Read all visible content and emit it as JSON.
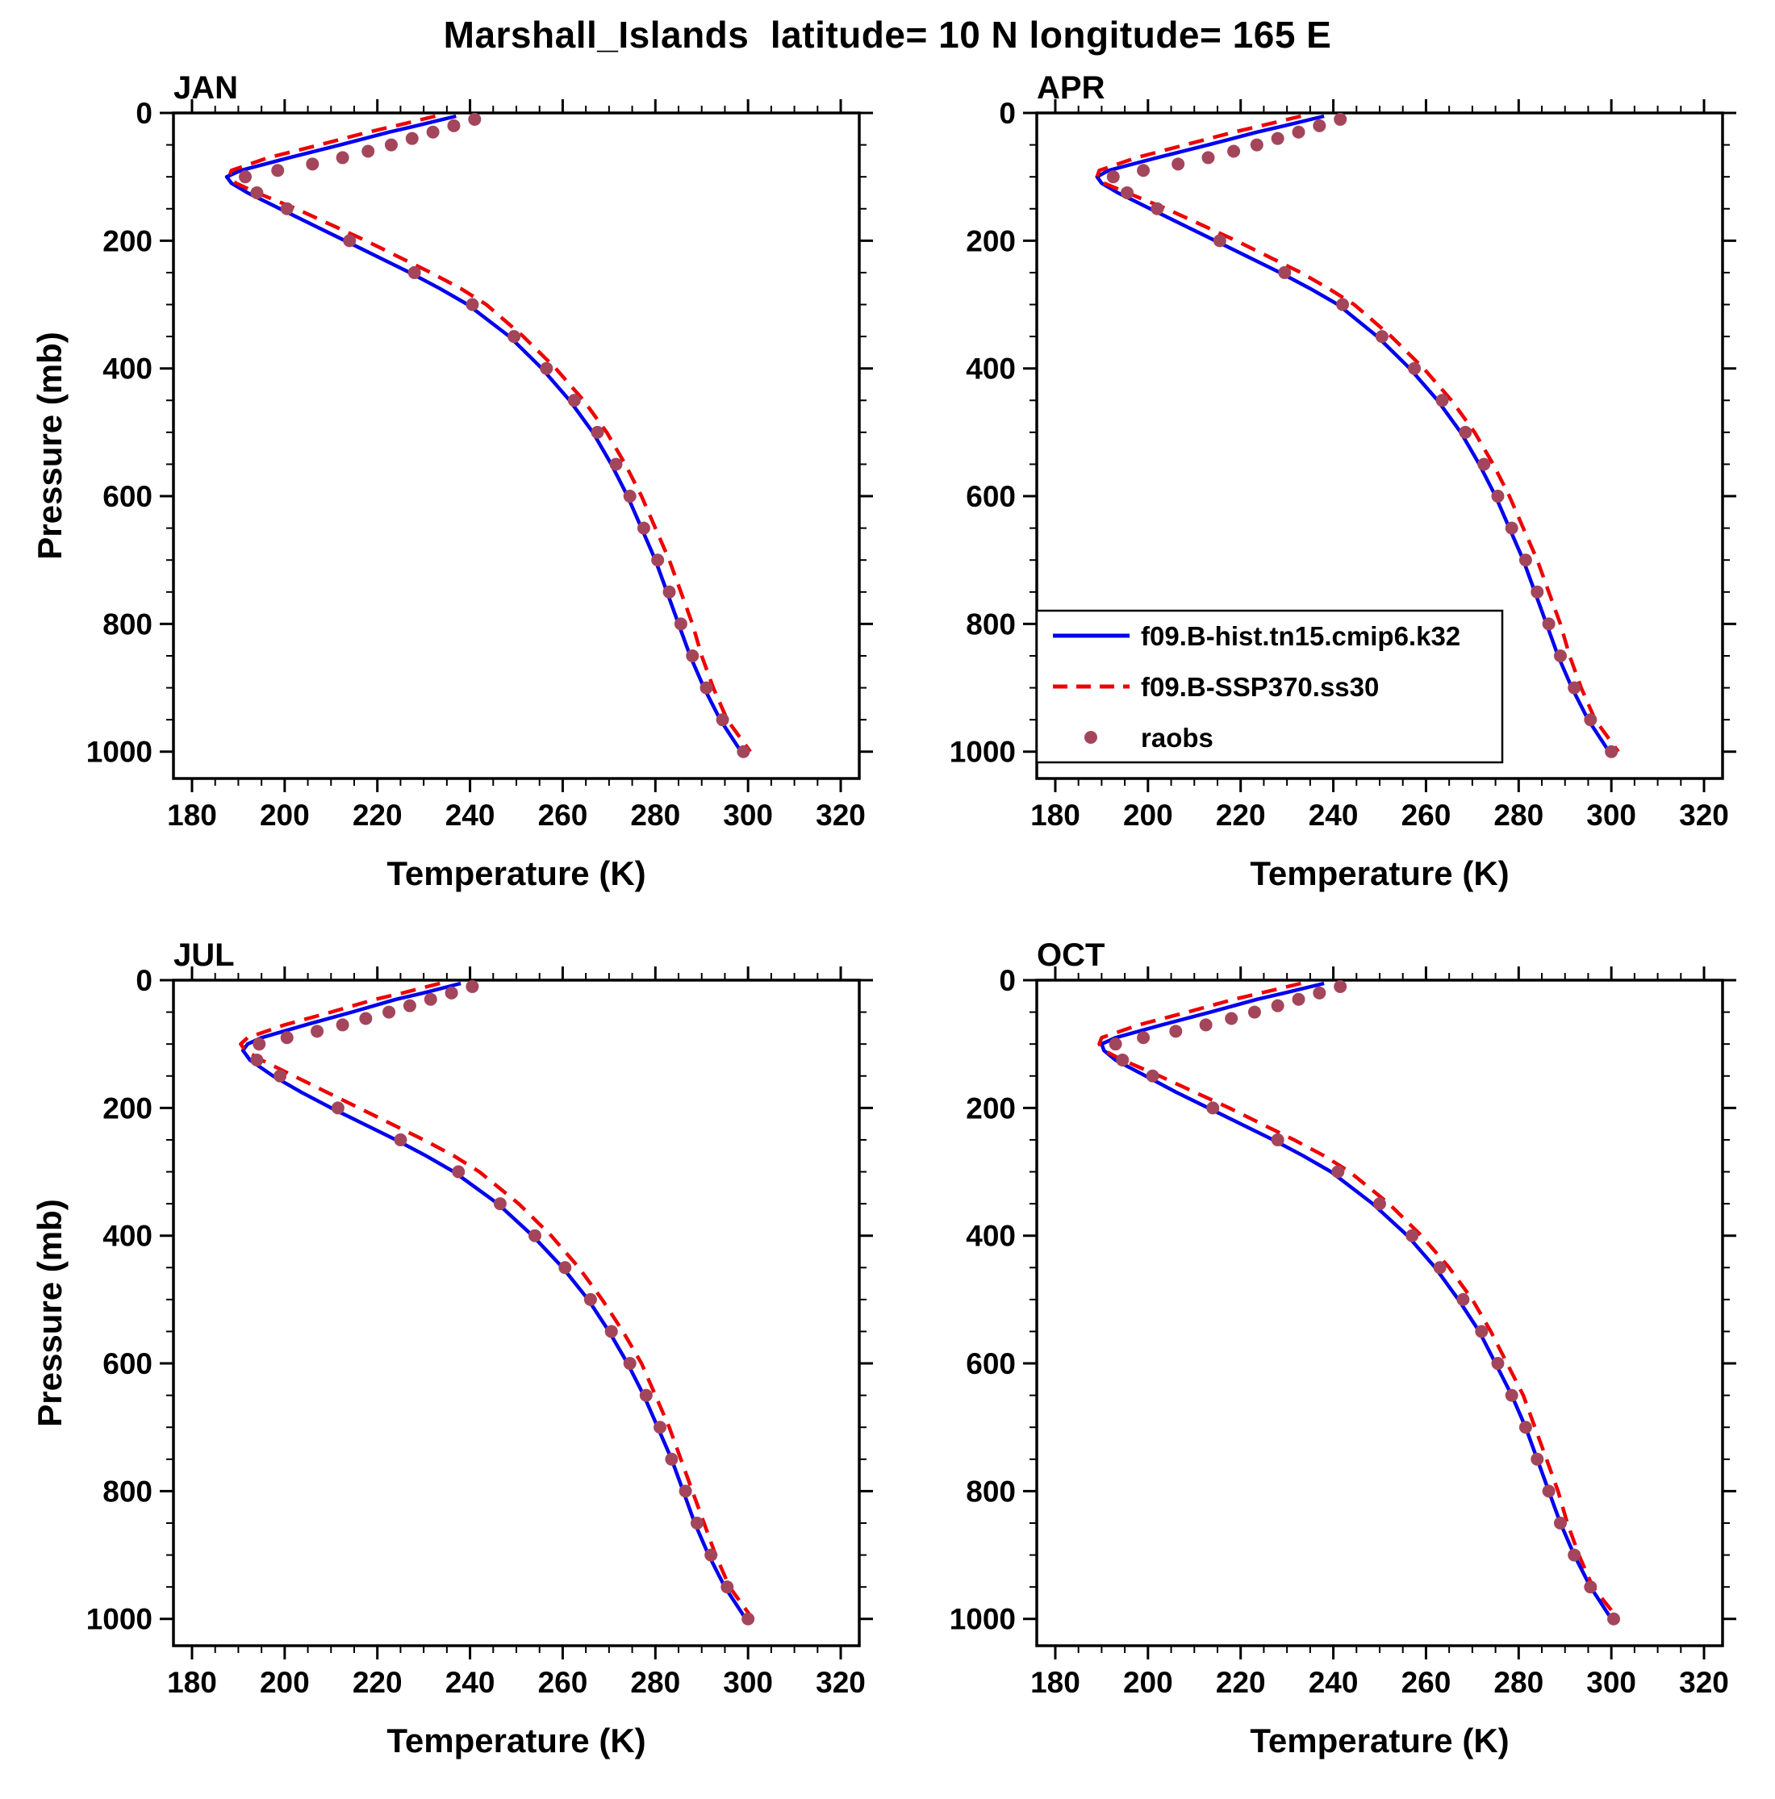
{
  "title": "Marshall_Islands  latitude= 10 N longitude= 165 E",
  "chart_data": {
    "type": "line",
    "title": "Marshall_Islands  latitude= 10 N longitude= 165 E",
    "xlabel": "Temperature (K)",
    "ylabel": "Pressure (mb)",
    "xlim": [
      180,
      320
    ],
    "ylim": [
      0,
      1000
    ],
    "y_axis_inverted": true,
    "xticks": [
      180,
      200,
      220,
      240,
      260,
      280,
      300,
      320
    ],
    "yticks": [
      0,
      200,
      400,
      600,
      800,
      1000
    ],
    "x_minor_step": 5,
    "y_minor_step": 50,
    "legend": {
      "panel": "APR",
      "position": "lower-left-inside",
      "entries": [
        "f09.B-hist.tn15.cmip6.k32",
        "f09.B-SSP370.ss30",
        "raobs"
      ]
    },
    "colors": {
      "hist": "#0000ee",
      "ssp370": "#ee0000",
      "raobs": "#a3465c"
    },
    "panels": [
      {
        "label": "JAN",
        "series": [
          {
            "name": "f09.B-hist.tn15.cmip6.k32",
            "color": "#0000ee",
            "style": "solid",
            "pressure": [
              5,
              20,
              30,
              50,
              70,
              90,
              100,
              110,
              125,
              150,
              175,
              200,
              225,
              250,
              275,
              300,
              350,
              400,
              450,
              500,
              550,
              600,
              650,
              700,
              750,
              800,
              850,
              900,
              950,
              1000
            ],
            "temperature": [
              237,
              228.5,
              222.5,
              212,
              201,
              190.5,
              187.5,
              188.5,
              192,
              199,
              206,
              213,
              220,
              227,
              233.5,
              239.5,
              248.5,
              255.5,
              261.5,
              266.5,
              270.5,
              274,
              277,
              280,
              282.5,
              285,
              287.5,
              290.5,
              294,
              298.5
            ]
          },
          {
            "name": "f09.B-SSP370.ss30",
            "color": "#ee0000",
            "style": "dashed",
            "pressure": [
              5,
              20,
              30,
              50,
              70,
              90,
              100,
              110,
              125,
              150,
              175,
              200,
              225,
              250,
              275,
              300,
              350,
              400,
              450,
              500,
              550,
              600,
              650,
              700,
              750,
              800,
              850,
              900,
              950,
              1000
            ],
            "temperature": [
              232.5,
              224,
              218,
              207.5,
              196.5,
              188.5,
              188,
              189.5,
              194,
              202.5,
              210,
              217.5,
              224.5,
              231.5,
              238,
              243.5,
              251.5,
              258.5,
              264.5,
              269.5,
              273.5,
              277,
              280,
              283,
              285.5,
              288,
              290,
              292.5,
              295.5,
              300.5
            ]
          },
          {
            "name": "raobs",
            "color": "#a3465c",
            "style": "dots",
            "pressure": [
              10,
              20,
              30,
              40,
              50,
              60,
              70,
              80,
              90,
              100,
              125,
              150,
              200,
              250,
              300,
              350,
              400,
              450,
              500,
              550,
              600,
              650,
              700,
              750,
              800,
              850,
              900,
              950,
              1000
            ],
            "temperature": [
              241,
              236.5,
              232,
              227.5,
              223,
              218,
              212.5,
              206,
              198.5,
              191.5,
              194,
              200.5,
              214,
              228,
              240.5,
              249.5,
              256.5,
              262.5,
              267.5,
              271.5,
              274.5,
              277.5,
              280.5,
              283,
              285.5,
              288,
              291,
              294.5,
              299
            ]
          }
        ]
      },
      {
        "label": "APR",
        "series": [
          {
            "name": "f09.B-hist.tn15.cmip6.k32",
            "color": "#0000ee",
            "style": "solid",
            "pressure": [
              5,
              20,
              30,
              50,
              70,
              90,
              100,
              110,
              125,
              150,
              175,
              200,
              225,
              250,
              275,
              300,
              350,
              400,
              450,
              500,
              550,
              600,
              650,
              700,
              750,
              800,
              850,
              900,
              950,
              1000
            ],
            "temperature": [
              238,
              229.5,
              223.5,
              213,
              202,
              191.5,
              189,
              190,
              193.5,
              200.5,
              207.5,
              214.5,
              221.5,
              228.5,
              235,
              241,
              249.5,
              256.5,
              262.5,
              267.5,
              271.5,
              275,
              278,
              281,
              283.5,
              286,
              288.5,
              291.5,
              295,
              299.5
            ]
          },
          {
            "name": "f09.B-SSP370.ss30",
            "color": "#ee0000",
            "style": "dashed",
            "pressure": [
              5,
              20,
              30,
              50,
              70,
              90,
              100,
              110,
              125,
              150,
              175,
              200,
              225,
              250,
              275,
              300,
              350,
              400,
              450,
              500,
              550,
              600,
              650,
              700,
              750,
              800,
              850,
              900,
              950,
              1000
            ],
            "temperature": [
              233,
              224.5,
              218.5,
              208,
              197.5,
              189.5,
              189,
              190.5,
              195.5,
              204,
              211.5,
              219,
              226,
              233,
              239,
              244.5,
              252.5,
              259.5,
              265.5,
              270.5,
              274.5,
              278,
              281,
              284,
              286.5,
              289,
              291,
              293.5,
              296.5,
              301.5
            ]
          },
          {
            "name": "raobs",
            "color": "#a3465c",
            "style": "dots",
            "pressure": [
              10,
              20,
              30,
              40,
              50,
              60,
              70,
              80,
              90,
              100,
              125,
              150,
              200,
              250,
              300,
              350,
              400,
              450,
              500,
              550,
              600,
              650,
              700,
              750,
              800,
              850,
              900,
              950,
              1000
            ],
            "temperature": [
              241.5,
              237,
              232.5,
              228,
              223.5,
              218.5,
              213,
              206.5,
              199,
              192.5,
              195.5,
              202,
              215.5,
              229.5,
              242,
              250.5,
              257.5,
              263.5,
              268.5,
              272.5,
              275.5,
              278.5,
              281.5,
              284,
              286.5,
              289,
              292,
              295.5,
              300
            ]
          }
        ]
      },
      {
        "label": "JUL",
        "series": [
          {
            "name": "f09.B-hist.tn15.cmip6.k32",
            "color": "#0000ee",
            "style": "solid",
            "pressure": [
              5,
              20,
              30,
              50,
              70,
              90,
              100,
              110,
              125,
              150,
              175,
              200,
              225,
              250,
              275,
              300,
              350,
              400,
              450,
              500,
              550,
              600,
              650,
              700,
              750,
              800,
              850,
              900,
              950,
              1000
            ],
            "temperature": [
              238,
              230,
              224,
              214.5,
              204.5,
              195,
              192,
              191,
              192.5,
              197.5,
              203.5,
              210,
              217,
              224,
              230.5,
              236.5,
              246,
              253.5,
              260,
              265.5,
              270,
              274,
              277.5,
              280.5,
              283.5,
              286,
              288.5,
              291.5,
              295,
              299.5
            ]
          },
          {
            "name": "f09.B-SSP370.ss30",
            "color": "#ee0000",
            "style": "dashed",
            "pressure": [
              5,
              20,
              30,
              50,
              70,
              90,
              100,
              110,
              125,
              150,
              175,
              200,
              225,
              250,
              275,
              300,
              350,
              400,
              450,
              500,
              550,
              600,
              650,
              700,
              750,
              800,
              850,
              900,
              950,
              1000
            ],
            "temperature": [
              233.5,
              225.5,
              219.5,
              210,
              200,
              192,
              190.5,
              191.5,
              195,
              202,
              209,
              216,
              223,
              230,
              236.5,
              242,
              250.5,
              257.5,
              263.5,
              268.5,
              273,
              277,
              280,
              283,
              285.5,
              288,
              290.5,
              293,
              296,
              301
            ]
          },
          {
            "name": "raobs",
            "color": "#a3465c",
            "style": "dots",
            "pressure": [
              10,
              20,
              30,
              40,
              50,
              60,
              70,
              80,
              90,
              100,
              125,
              150,
              200,
              250,
              300,
              350,
              400,
              450,
              500,
              550,
              600,
              650,
              700,
              750,
              800,
              850,
              900,
              950,
              1000
            ],
            "temperature": [
              240.5,
              236,
              231.5,
              227,
              222.5,
              217.5,
              212.5,
              207,
              200.5,
              194.5,
              194,
              199,
              211.5,
              225,
              237.5,
              246.5,
              254,
              260.5,
              266,
              270.5,
              274.5,
              278,
              281,
              283.5,
              286.5,
              289,
              292,
              295.5,
              300
            ]
          }
        ]
      },
      {
        "label": "OCT",
        "series": [
          {
            "name": "f09.B-hist.tn15.cmip6.k32",
            "color": "#0000ee",
            "style": "solid",
            "pressure": [
              5,
              20,
              30,
              50,
              70,
              90,
              100,
              110,
              125,
              150,
              175,
              200,
              225,
              250,
              275,
              300,
              350,
              400,
              450,
              500,
              550,
              600,
              650,
              700,
              750,
              800,
              850,
              900,
              950,
              1000
            ],
            "temperature": [
              238,
              229.5,
              223.5,
              213.5,
              203,
              193,
              190,
              190.5,
              193,
              199.5,
              206,
              213,
              220,
              227,
              233.5,
              239.5,
              248.5,
              256,
              262,
              267,
              271.5,
              275,
              278.5,
              281.5,
              284,
              286.5,
              289,
              292,
              295.5,
              300
            ]
          },
          {
            "name": "f09.B-SSP370.ss30",
            "color": "#ee0000",
            "style": "dashed",
            "pressure": [
              5,
              20,
              30,
              50,
              70,
              90,
              100,
              110,
              125,
              150,
              175,
              200,
              225,
              250,
              275,
              300,
              350,
              400,
              450,
              500,
              550,
              600,
              650,
              700,
              750,
              800,
              850,
              900,
              950,
              1000
            ],
            "temperature": [
              233,
              224.5,
              218.5,
              208.5,
              198,
              190,
              189.5,
              190.5,
              194.5,
              202.5,
              210,
              217.5,
              224.5,
              231.5,
              238,
              243.5,
              252,
              259,
              265,
              270,
              274,
              277.5,
              281,
              283.5,
              286,
              288.5,
              290.5,
              293,
              296,
              301.5
            ]
          },
          {
            "name": "raobs",
            "color": "#a3465c",
            "style": "dots",
            "pressure": [
              10,
              20,
              30,
              40,
              50,
              60,
              70,
              80,
              90,
              100,
              125,
              150,
              200,
              250,
              300,
              350,
              400,
              450,
              500,
              550,
              600,
              650,
              700,
              750,
              800,
              850,
              900,
              950,
              1000
            ],
            "temperature": [
              241.5,
              237,
              232.5,
              228,
              223,
              218,
              212.5,
              206,
              199,
              193,
              194.5,
              201,
              214,
              228,
              241,
              250,
              257,
              263,
              268,
              272,
              275.5,
              278.5,
              281.5,
              284,
              286.5,
              289,
              292,
              295.5,
              300.5
            ]
          }
        ]
      }
    ]
  }
}
